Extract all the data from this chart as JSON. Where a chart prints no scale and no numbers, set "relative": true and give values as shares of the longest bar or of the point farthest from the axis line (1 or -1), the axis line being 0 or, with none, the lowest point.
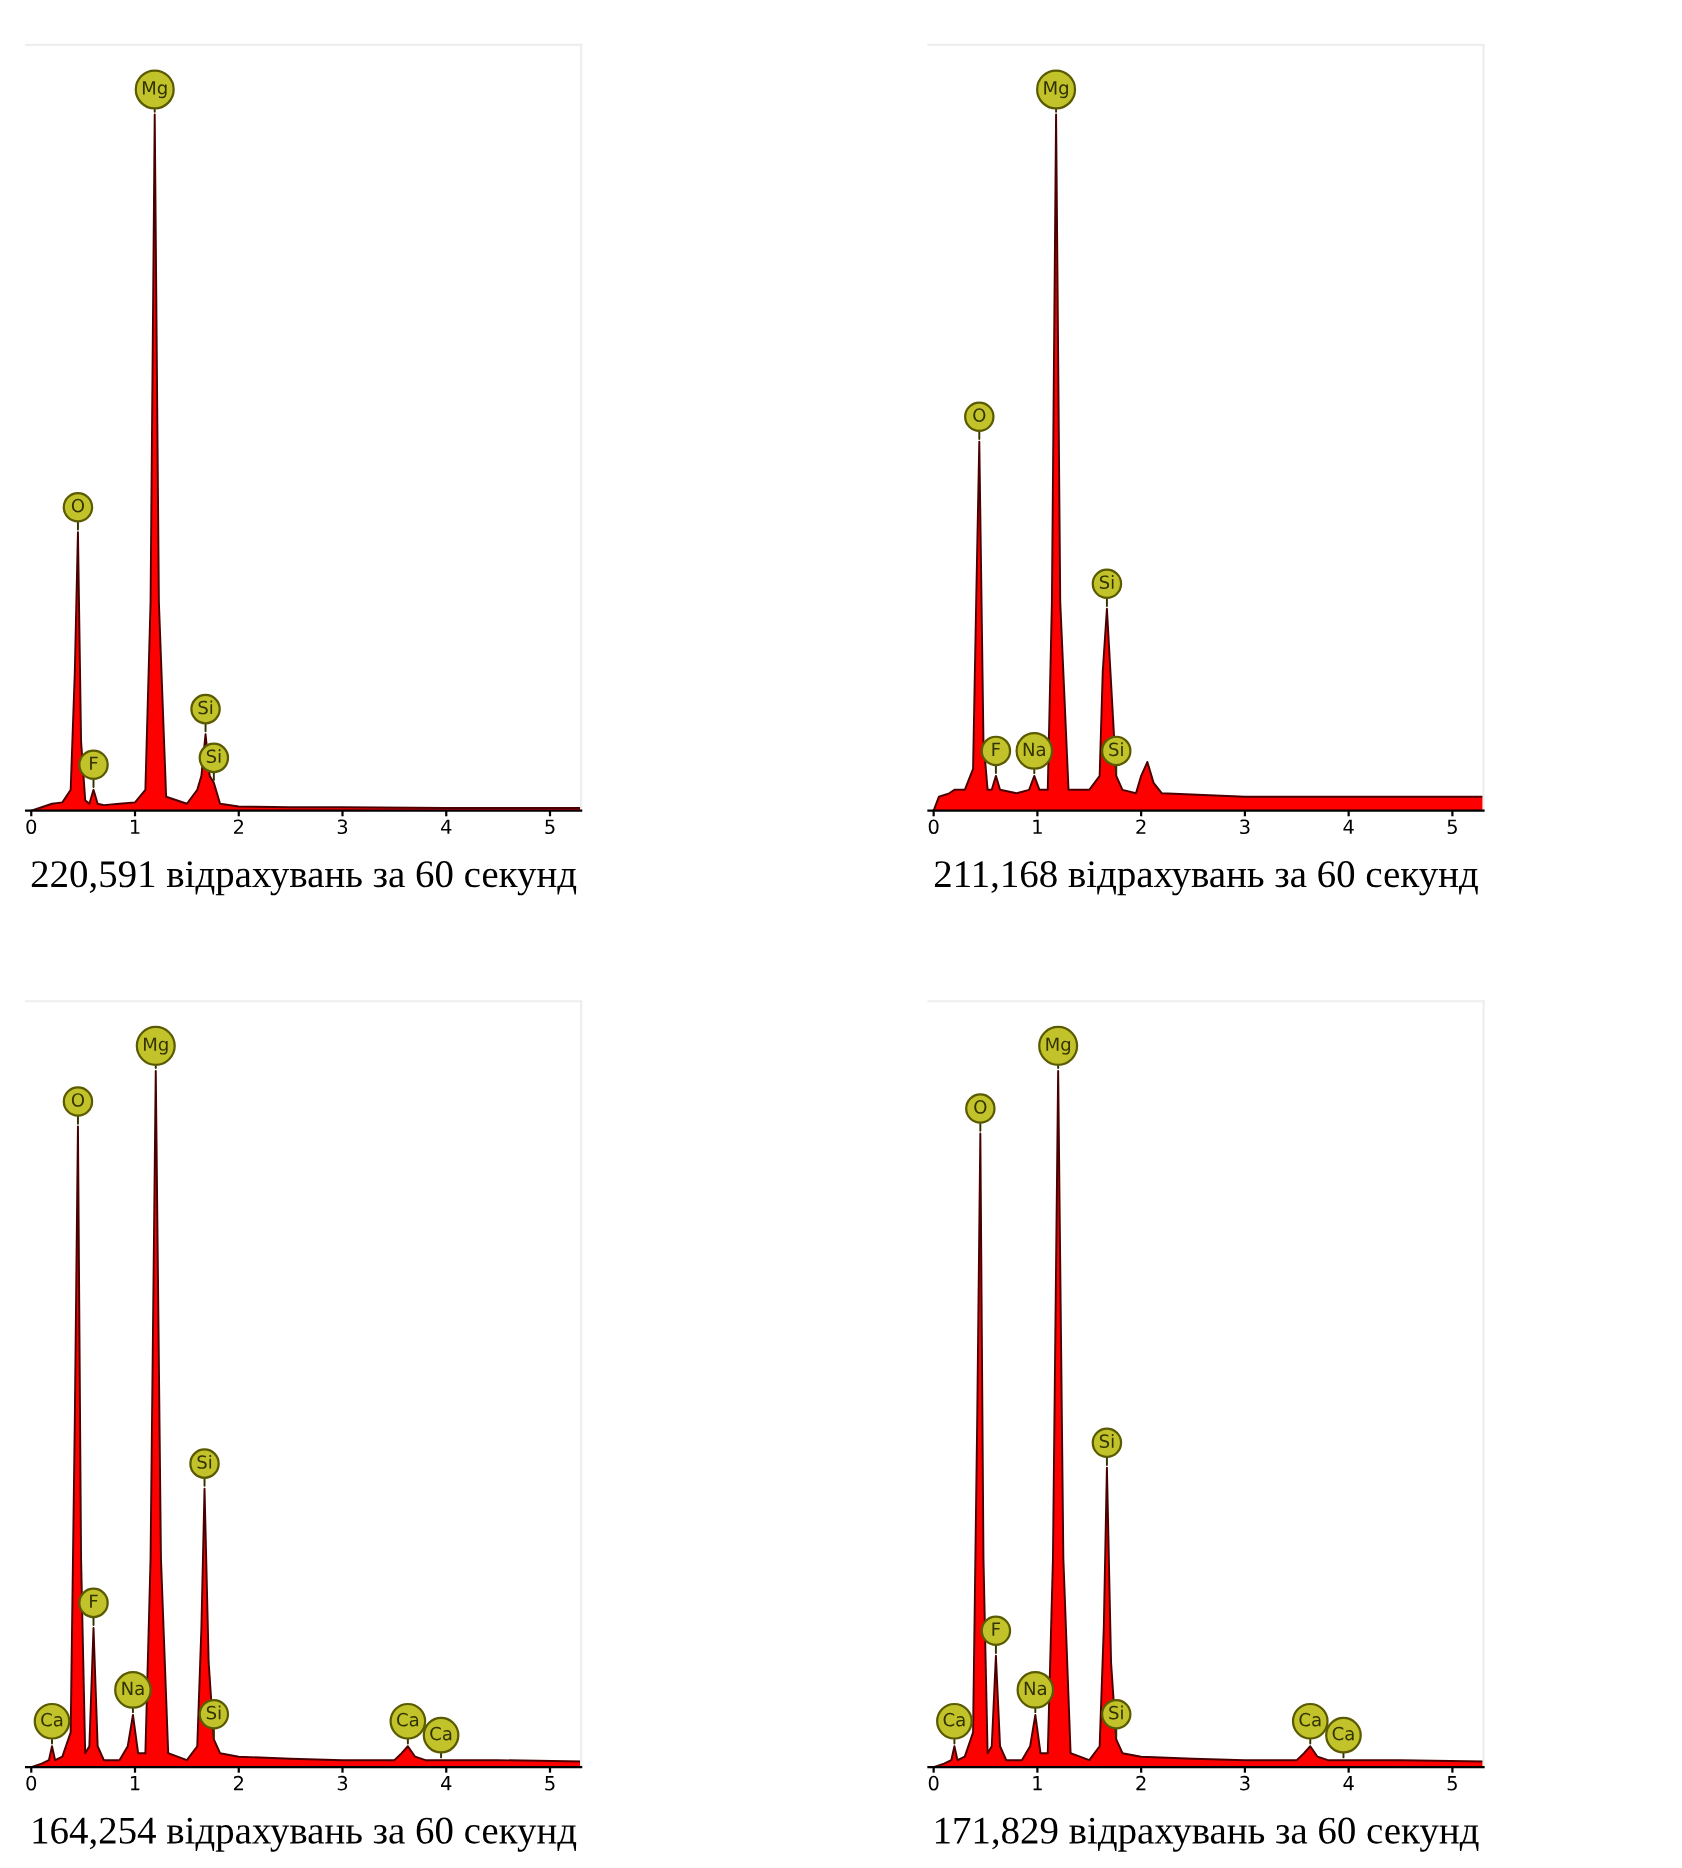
{
  "chart_data": [
    {
      "type": "area",
      "relative": true,
      "xlabel": "220,591 відрахувань за 60 секунд",
      "color": "#ff0000",
      "xlim": [
        -0.05,
        5.3
      ],
      "xticks": [
        0,
        1,
        2,
        3,
        4,
        5
      ],
      "x": [
        0,
        0.1,
        0.2,
        0.3,
        0.38,
        0.42,
        0.45,
        0.48,
        0.52,
        0.56,
        0.6,
        0.64,
        0.7,
        0.85,
        1.0,
        1.1,
        1.15,
        1.19,
        1.23,
        1.3,
        1.5,
        1.6,
        1.64,
        1.68,
        1.72,
        1.76,
        1.82,
        2.0,
        2.5,
        3.0,
        4.0,
        5.3
      ],
      "values": [
        0,
        0.005,
        0.01,
        0.012,
        0.03,
        0.2,
        0.4,
        0.1,
        0.015,
        0.01,
        0.03,
        0.01,
        0.008,
        0.01,
        0.012,
        0.03,
        0.3,
        1.0,
        0.3,
        0.02,
        0.01,
        0.03,
        0.05,
        0.11,
        0.05,
        0.04,
        0.01,
        0.006,
        0.005,
        0.005,
        0.004,
        0.004
      ],
      "annotations": [
        {
          "text": "Mg",
          "x": 1.19,
          "y": 1.0
        },
        {
          "text": "O",
          "x": 0.45,
          "y": 0.4
        },
        {
          "text": "Si",
          "x": 1.68,
          "y": 0.11
        },
        {
          "text": "F",
          "x": 0.6,
          "y": 0.03
        },
        {
          "text": "Si",
          "x": 1.76,
          "y": 0.04
        }
      ]
    },
    {
      "type": "area",
      "relative": true,
      "xlabel": "211,168 відрахувань за 60 секунд",
      "color": "#ff0000",
      "xlim": [
        -0.05,
        5.3
      ],
      "xticks": [
        0,
        1,
        2,
        3,
        4,
        5
      ],
      "x": [
        0,
        0.05,
        0.15,
        0.2,
        0.3,
        0.38,
        0.41,
        0.44,
        0.48,
        0.52,
        0.56,
        0.6,
        0.64,
        0.8,
        0.92,
        0.97,
        1.02,
        1.1,
        1.14,
        1.18,
        1.22,
        1.3,
        1.5,
        1.6,
        1.63,
        1.67,
        1.76,
        1.82,
        1.95,
        2.0,
        2.06,
        2.12,
        2.2,
        3.0,
        4.0,
        5.3
      ],
      "values": [
        0,
        0.02,
        0.025,
        0.03,
        0.03,
        0.06,
        0.3,
        0.53,
        0.1,
        0.03,
        0.03,
        0.05,
        0.03,
        0.025,
        0.03,
        0.05,
        0.03,
        0.03,
        0.3,
        1.0,
        0.3,
        0.03,
        0.03,
        0.05,
        0.2,
        0.29,
        0.05,
        0.03,
        0.025,
        0.05,
        0.07,
        0.04,
        0.025,
        0.02,
        0.02,
        0.02
      ],
      "annotations": [
        {
          "text": "Mg",
          "x": 1.18,
          "y": 1.0
        },
        {
          "text": "O",
          "x": 0.44,
          "y": 0.53
        },
        {
          "text": "Si",
          "x": 1.67,
          "y": 0.29
        },
        {
          "text": "F",
          "x": 0.6,
          "y": 0.05
        },
        {
          "text": "Na",
          "x": 0.97,
          "y": 0.05
        },
        {
          "text": "Si",
          "x": 1.76,
          "y": 0.05
        }
      ]
    },
    {
      "type": "area",
      "relative": true,
      "xlabel": "164,254 відрахувань за 60 секунд",
      "color": "#ff0000",
      "xlim": [
        -0.05,
        5.3
      ],
      "xticks": [
        0,
        1,
        2,
        3,
        4,
        5
      ],
      "x": [
        0,
        0.1,
        0.17,
        0.2,
        0.23,
        0.3,
        0.38,
        0.42,
        0.45,
        0.48,
        0.52,
        0.56,
        0.6,
        0.64,
        0.7,
        0.85,
        0.93,
        0.98,
        1.03,
        1.1,
        1.15,
        1.2,
        1.25,
        1.32,
        1.5,
        1.6,
        1.64,
        1.67,
        1.71,
        1.76,
        1.82,
        2.0,
        2.5,
        3.0,
        3.5,
        3.57,
        3.63,
        3.7,
        3.8,
        4.5,
        5.3
      ],
      "values": [
        0,
        0.005,
        0.01,
        0.03,
        0.01,
        0.015,
        0.05,
        0.5,
        0.92,
        0.3,
        0.02,
        0.03,
        0.2,
        0.03,
        0.01,
        0.01,
        0.03,
        0.075,
        0.02,
        0.02,
        0.3,
        1.0,
        0.3,
        0.02,
        0.01,
        0.03,
        0.2,
        0.4,
        0.15,
        0.04,
        0.02,
        0.015,
        0.012,
        0.01,
        0.01,
        0.02,
        0.03,
        0.015,
        0.01,
        0.01,
        0.008
      ],
      "annotations": [
        {
          "text": "Mg",
          "x": 1.2,
          "y": 1.0
        },
        {
          "text": "O",
          "x": 0.45,
          "y": 0.92
        },
        {
          "text": "Si",
          "x": 1.67,
          "y": 0.4
        },
        {
          "text": "F",
          "x": 0.6,
          "y": 0.2
        },
        {
          "text": "Na",
          "x": 0.98,
          "y": 0.075
        },
        {
          "text": "Si",
          "x": 1.76,
          "y": 0.04
        },
        {
          "text": "Ca",
          "x": 0.2,
          "y": 0.03
        },
        {
          "text": "Ca",
          "x": 3.63,
          "y": 0.03
        },
        {
          "text": "Ca",
          "x": 3.95,
          "y": 0.01
        }
      ]
    },
    {
      "type": "area",
      "relative": true,
      "xlabel": "171,829 відрахувань за 60 секунд",
      "color": "#ff0000",
      "xlim": [
        -0.05,
        5.3
      ],
      "xticks": [
        0,
        1,
        2,
        3,
        4,
        5
      ],
      "x": [
        0,
        0.1,
        0.17,
        0.2,
        0.23,
        0.3,
        0.38,
        0.42,
        0.45,
        0.48,
        0.52,
        0.56,
        0.6,
        0.64,
        0.7,
        0.85,
        0.93,
        0.98,
        1.03,
        1.1,
        1.15,
        1.2,
        1.25,
        1.32,
        1.5,
        1.6,
        1.64,
        1.67,
        1.71,
        1.76,
        1.82,
        2.0,
        2.5,
        3.0,
        3.5,
        3.57,
        3.63,
        3.7,
        3.8,
        4.5,
        5.3
      ],
      "values": [
        0,
        0.005,
        0.01,
        0.03,
        0.01,
        0.015,
        0.05,
        0.5,
        0.91,
        0.3,
        0.02,
        0.03,
        0.16,
        0.03,
        0.01,
        0.01,
        0.03,
        0.075,
        0.02,
        0.02,
        0.3,
        1.0,
        0.3,
        0.02,
        0.01,
        0.03,
        0.2,
        0.43,
        0.15,
        0.04,
        0.02,
        0.015,
        0.012,
        0.01,
        0.01,
        0.02,
        0.03,
        0.015,
        0.01,
        0.01,
        0.008
      ],
      "annotations": [
        {
          "text": "Mg",
          "x": 1.2,
          "y": 1.0
        },
        {
          "text": "O",
          "x": 0.45,
          "y": 0.91
        },
        {
          "text": "Si",
          "x": 1.67,
          "y": 0.43
        },
        {
          "text": "F",
          "x": 0.6,
          "y": 0.16
        },
        {
          "text": "Na",
          "x": 0.98,
          "y": 0.075
        },
        {
          "text": "Si",
          "x": 1.76,
          "y": 0.04
        },
        {
          "text": "Ca",
          "x": 0.2,
          "y": 0.03
        },
        {
          "text": "Ca",
          "x": 3.63,
          "y": 0.03
        },
        {
          "text": "Ca",
          "x": 3.95,
          "y": 0.01
        }
      ]
    }
  ]
}
